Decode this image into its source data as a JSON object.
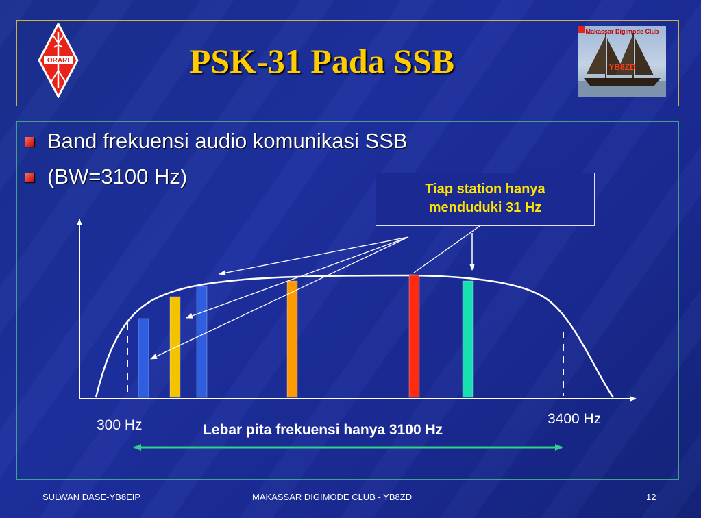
{
  "slide": {
    "title": "PSK-31 Pada SSB",
    "bullets": [
      "Band frekuensi audio komunikasi SSB",
      "(BW=3100 Hz)"
    ],
    "callout": {
      "line1": "Tiap station hanya",
      "line2": "menduduki 31 Hz"
    },
    "logos": {
      "orari": "ORARI",
      "club_name": "Makassar Digimode Club",
      "club_callsign": "YB8ZD"
    },
    "footer": {
      "left": "SULWAN DASE-YB8EIP",
      "center": "MAKASSAR DIGIMODE CLUB - YB8ZD",
      "page_number": "12"
    }
  },
  "diagram": {
    "low_freq_label": "300 Hz",
    "high_freq_label": "3400 Hz",
    "bandwidth_label": "Lebar pita frekuensi hanya 3100 Hz",
    "signal_bars": [
      {
        "color": "#2f5fe0",
        "label": ""
      },
      {
        "color": "#f3c300",
        "label": ""
      },
      {
        "color": "#2f5fe0",
        "label": ""
      },
      {
        "color": "#ff9a00",
        "label": ""
      },
      {
        "color": "#ff2a10",
        "label": ""
      },
      {
        "color": "#19e0b0",
        "label": ""
      }
    ],
    "colors": {
      "title": "#ffcc00",
      "callout_text": "#ffe500",
      "bandwidth_arrow": "#2fd08a",
      "bullet": "#d01010"
    }
  }
}
